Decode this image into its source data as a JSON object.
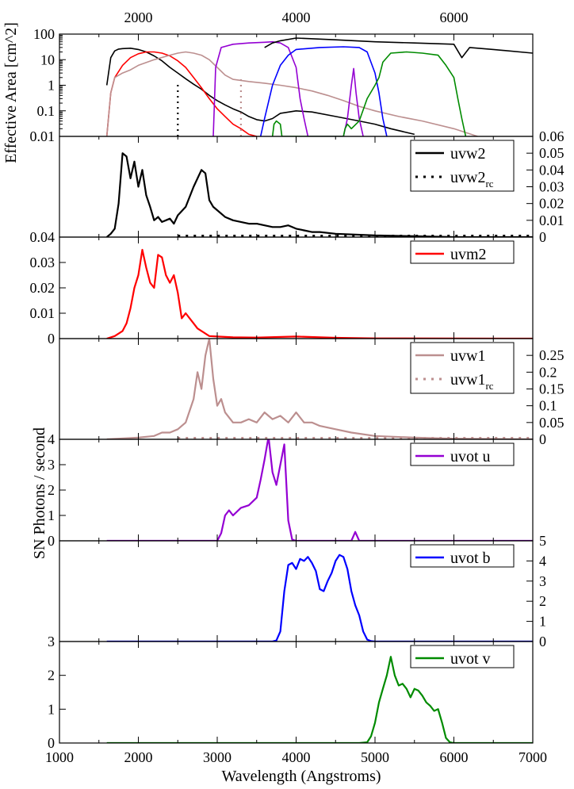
{
  "chart_data": {
    "type": "line",
    "xlabel": "Wavelength (Angstroms)",
    "ylabel_shared": "SN Photons / second",
    "xlim": [
      1000,
      7000
    ],
    "x_ticks_bottom": [
      "1000",
      "2000",
      "3000",
      "4000",
      "5000",
      "6000",
      "7000"
    ],
    "x_ticks_top": [
      "2000",
      "4000",
      "6000"
    ],
    "colors": {
      "uvw2": "#000000",
      "uvm2": "#ff0000",
      "uvw1": "#bc8f8f",
      "u": "#9400d3",
      "b": "#0000ff",
      "v": "#008b00"
    },
    "effective_area": {
      "ylabel": "Effective Area [cm^2]",
      "scale": "log",
      "ylim": [
        0.01,
        100
      ],
      "y_ticks": [
        "0.01",
        "0.1",
        "1",
        "10",
        "100"
      ],
      "series": [
        {
          "name": "uvw2",
          "x": [
            1600,
            1650,
            1700,
            1750,
            1800,
            1900,
            2000,
            2100,
            2200,
            2300,
            2400,
            2500,
            2600,
            2700,
            2800,
            2900,
            3000,
            3100,
            3200,
            3300,
            3400,
            3500,
            3600,
            3700,
            3800,
            4000,
            4200,
            4500,
            4800,
            5000,
            5200,
            5500
          ],
          "y": [
            1,
            12,
            22,
            26,
            27,
            28,
            25,
            20,
            14,
            9,
            5,
            3,
            1.8,
            1.1,
            0.7,
            0.4,
            0.25,
            0.17,
            0.12,
            0.09,
            0.06,
            0.045,
            0.04,
            0.05,
            0.08,
            0.1,
            0.09,
            0.06,
            0.04,
            0.03,
            0.02,
            0.012
          ]
        },
        {
          "name": "uvw2_rc",
          "x": [
            2500,
            2500
          ],
          "y": [
            0.01,
            1.1
          ]
        },
        {
          "name": "uvm2",
          "x": [
            1600,
            1650,
            1700,
            1800,
            1900,
            2000,
            2100,
            2200,
            2300,
            2400,
            2500,
            2600,
            2700,
            2800,
            2900,
            3000,
            3100,
            3200,
            3300,
            3400,
            3500
          ],
          "y": [
            0.01,
            0.5,
            2,
            6,
            12,
            17,
            20,
            20,
            18,
            14,
            9,
            5,
            2,
            0.8,
            0.3,
            0.12,
            0.06,
            0.03,
            0.02,
            0.012,
            0.01
          ]
        },
        {
          "name": "uvw1",
          "x": [
            1600,
            1650,
            1700,
            1800,
            1900,
            2000,
            2200,
            2400,
            2500,
            2600,
            2700,
            2800,
            2900,
            3000,
            3100,
            3200,
            3400,
            3600,
            3800,
            4000,
            4200,
            4400,
            4600,
            4800,
            5000,
            5300,
            5600,
            6000,
            6300
          ],
          "y": [
            0.01,
            0.5,
            2,
            3,
            4,
            6,
            10,
            15,
            18,
            20,
            18,
            15,
            10,
            5,
            2.5,
            1.7,
            1.4,
            1.2,
            1,
            0.8,
            0.6,
            0.4,
            0.25,
            0.15,
            0.1,
            0.06,
            0.04,
            0.02,
            0.01
          ]
        },
        {
          "name": "uvw1_rc",
          "x": [
            3300,
            3300
          ],
          "y": [
            0.01,
            2
          ]
        },
        {
          "name": "uvot u",
          "x": [
            2950,
            2980,
            3050,
            3200,
            3400,
            3600,
            3700,
            3800,
            3900,
            4000,
            4050,
            4100,
            4150,
            4600,
            4650,
            4700,
            4730,
            4760,
            4800,
            4850
          ],
          "y": [
            0.01,
            5,
            30,
            40,
            45,
            48,
            50,
            45,
            30,
            5,
            0.3,
            0.05,
            0.01,
            0.01,
            0.05,
            1,
            4.5,
            0.5,
            0.05,
            0.01
          ]
        },
        {
          "name": "uvot b",
          "x": [
            3550,
            3600,
            3700,
            3800,
            3900,
            4000,
            4300,
            4600,
            4800,
            4900,
            5000,
            5050,
            5100,
            5150
          ],
          "y": [
            0.01,
            0.05,
            1,
            6,
            15,
            25,
            30,
            32,
            30,
            20,
            3,
            0.5,
            0.05,
            0.01
          ]
        },
        {
          "name": "uvot v",
          "x": [
            3700,
            3720,
            3750,
            3800,
            3820,
            4600,
            4620,
            4650,
            4700,
            4800,
            4900,
            5000,
            5050,
            5100,
            5200,
            5400,
            5600,
            5800,
            5900,
            6000,
            6050,
            6100,
            6150
          ],
          "y": [
            0.01,
            0.03,
            0.04,
            0.03,
            0.01,
            0.01,
            0.02,
            0.03,
            0.02,
            0.04,
            0.3,
            1,
            2,
            8,
            18,
            20,
            18,
            15,
            6,
            2,
            0.3,
            0.05,
            0.01
          ]
        },
        {
          "name": "uvw2 (extended)",
          "x": [
            3600,
            3700,
            3800,
            4000,
            4500,
            5000,
            5500,
            6000,
            6100,
            6200,
            6500,
            7000
          ],
          "y": [
            30,
            45,
            55,
            70,
            60,
            50,
            45,
            40,
            12,
            30,
            25,
            18
          ]
        }
      ]
    },
    "panels": [
      {
        "name": "uvw2",
        "legend": [
          "uvw2",
          "uvw2_rc"
        ],
        "ylim": [
          0,
          0.06
        ],
        "y_ticks_right": [
          "0",
          "0.01",
          "0.02",
          "0.03",
          "0.04",
          "0.05",
          "0.06"
        ],
        "x": [
          1600,
          1650,
          1700,
          1750,
          1800,
          1850,
          1900,
          1950,
          2000,
          2050,
          2100,
          2150,
          2200,
          2250,
          2300,
          2350,
          2400,
          2450,
          2500,
          2600,
          2700,
          2800,
          2850,
          2900,
          2950,
          3000,
          3100,
          3200,
          3300,
          3400,
          3500,
          3600,
          3700,
          3800,
          3900,
          3950,
          4000,
          4100,
          4200,
          4300,
          4500,
          5000,
          5500,
          6000,
          6500,
          7000
        ],
        "y": [
          0,
          0.002,
          0.005,
          0.02,
          0.05,
          0.048,
          0.035,
          0.045,
          0.03,
          0.04,
          0.025,
          0.018,
          0.01,
          0.012,
          0.009,
          0.01,
          0.011,
          0.008,
          0.013,
          0.018,
          0.03,
          0.04,
          0.038,
          0.022,
          0.018,
          0.016,
          0.012,
          0.01,
          0.009,
          0.008,
          0.008,
          0.007,
          0.006,
          0.006,
          0.007,
          0.006,
          0.005,
          0.004,
          0.003,
          0.003,
          0.002,
          0.001,
          0.0005,
          0,
          0,
          0
        ]
      },
      {
        "name": "uvm2",
        "legend": [
          "uvm2"
        ],
        "ylim": [
          0,
          0.04
        ],
        "y_ticks_left": [
          "0",
          "0.01",
          "0.02",
          "0.03",
          "0.04"
        ],
        "x": [
          1600,
          1700,
          1800,
          1850,
          1900,
          1950,
          2000,
          2050,
          2100,
          2150,
          2200,
          2250,
          2300,
          2350,
          2400,
          2450,
          2500,
          2550,
          2600,
          2650,
          2700,
          2750,
          2800,
          2900,
          3000,
          3200,
          3500,
          4000,
          4500,
          5000,
          7000
        ],
        "y": [
          0,
          0.001,
          0.003,
          0.006,
          0.012,
          0.02,
          0.025,
          0.035,
          0.028,
          0.022,
          0.02,
          0.033,
          0.032,
          0.025,
          0.022,
          0.025,
          0.018,
          0.008,
          0.01,
          0.008,
          0.006,
          0.004,
          0.003,
          0.001,
          0.0008,
          0.0005,
          0.0004,
          0.0008,
          0.0003,
          0.0001,
          0
        ]
      },
      {
        "name": "uvw1",
        "legend": [
          "uvw1",
          "uvw1_rc"
        ],
        "ylim": [
          0,
          0.3
        ],
        "y_ticks_right": [
          "0",
          "0.05",
          "0.1",
          "0.15",
          "0.2",
          "0.25"
        ],
        "x": [
          1600,
          2000,
          2200,
          2300,
          2400,
          2500,
          2600,
          2700,
          2750,
          2800,
          2850,
          2900,
          2950,
          3000,
          3050,
          3100,
          3200,
          3300,
          3400,
          3500,
          3600,
          3700,
          3800,
          3900,
          4000,
          4100,
          4200,
          4300,
          4500,
          4700,
          5000,
          5500,
          6000,
          7000
        ],
        "y": [
          0,
          0.005,
          0.01,
          0.02,
          0.02,
          0.03,
          0.05,
          0.12,
          0.2,
          0.15,
          0.25,
          0.3,
          0.18,
          0.1,
          0.12,
          0.08,
          0.05,
          0.05,
          0.06,
          0.05,
          0.08,
          0.06,
          0.07,
          0.05,
          0.08,
          0.05,
          0.05,
          0.04,
          0.03,
          0.02,
          0.01,
          0.005,
          0.002,
          0
        ]
      },
      {
        "name": "uvot u",
        "legend": [
          "uvot u"
        ],
        "ylim": [
          0,
          4
        ],
        "y_ticks_left": [
          "0",
          "1",
          "2",
          "3",
          "4"
        ],
        "x": [
          1600,
          3000,
          3050,
          3100,
          3150,
          3200,
          3300,
          3400,
          3500,
          3550,
          3600,
          3650,
          3700,
          3750,
          3800,
          3850,
          3900,
          3950,
          4000,
          4500,
          4700,
          4750,
          4800,
          5000,
          7000
        ],
        "y": [
          0,
          0,
          0.3,
          1.0,
          1.2,
          1.0,
          1.3,
          1.4,
          1.7,
          2.4,
          3.2,
          4.1,
          2.7,
          2.2,
          3.0,
          3.8,
          0.8,
          0.05,
          0,
          0,
          0,
          0.35,
          0,
          0,
          0
        ]
      },
      {
        "name": "uvot b",
        "legend": [
          "uvot b"
        ],
        "ylim": [
          0,
          5
        ],
        "y_ticks_right": [
          "0",
          "1",
          "2",
          "3",
          "4",
          "5"
        ],
        "x": [
          1600,
          3700,
          3750,
          3800,
          3850,
          3900,
          3950,
          4000,
          4050,
          4100,
          4150,
          4200,
          4250,
          4300,
          4350,
          4400,
          4450,
          4500,
          4550,
          4600,
          4650,
          4700,
          4750,
          4800,
          4850,
          4900,
          4950,
          5000,
          7000
        ],
        "y": [
          0,
          0,
          0.05,
          0.5,
          2.5,
          3.8,
          3.9,
          3.6,
          4.1,
          4.0,
          4.2,
          3.9,
          3.5,
          2.6,
          2.5,
          3.0,
          3.4,
          4.0,
          4.3,
          4.2,
          3.6,
          2.5,
          1.8,
          1.3,
          0.5,
          0.1,
          0.02,
          0,
          0
        ]
      },
      {
        "name": "uvot v",
        "legend": [
          "uvot v"
        ],
        "ylim": [
          0,
          3
        ],
        "y_ticks_left": [
          "0",
          "1",
          "2",
          "3"
        ],
        "x": [
          1600,
          4800,
          4900,
          4950,
          5000,
          5050,
          5100,
          5150,
          5200,
          5250,
          5300,
          5350,
          5400,
          5450,
          5500,
          5550,
          5600,
          5650,
          5700,
          5750,
          5800,
          5850,
          5900,
          5950,
          6000,
          7000
        ],
        "y": [
          0,
          0,
          0.02,
          0.2,
          0.6,
          1.2,
          1.6,
          2.0,
          2.55,
          2.0,
          1.7,
          1.75,
          1.6,
          1.35,
          1.6,
          1.55,
          1.4,
          1.2,
          1.1,
          0.95,
          1.0,
          0.6,
          0.15,
          0.02,
          0,
          0
        ]
      }
    ]
  }
}
